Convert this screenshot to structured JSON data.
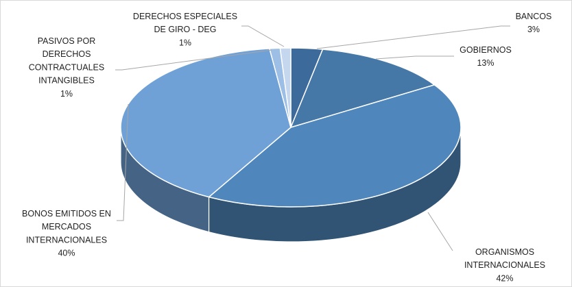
{
  "chart_data": {
    "type": "pie",
    "categories": [
      "BANCOS",
      "GOBIERNOS",
      "ORGANISMOS INTERNACIONALES",
      "BONOS EMITIDOS EN MERCADOS INTERNACIONALES",
      "PASIVOS POR DERECHOS CONTRACTUALES INTANGIBLES",
      "DERECHOS ESPECIALES DE GIRO - DEG"
    ],
    "values": [
      3,
      13,
      42,
      40,
      1,
      1
    ],
    "title": "",
    "value_labels": [
      "3%",
      "13%",
      "42%",
      "40%",
      "1%",
      "1%"
    ],
    "label_lines": [
      [
        "BANCOS",
        "3%"
      ],
      [
        "GOBIERNOS",
        "13%"
      ],
      [
        "ORGANISMOS",
        "INTERNACIONALES",
        "42%"
      ],
      [
        "BONOS EMITIDOS EN",
        "MERCADOS",
        "INTERNACIONALES",
        "40%"
      ],
      [
        "PASIVOS POR",
        "DERECHOS",
        "CONTRACTUALES",
        "INTANGIBLES",
        "1%"
      ],
      [
        "DERECHOS ESPECIALES",
        "DE GIRO - DEG",
        "1%"
      ]
    ],
    "colors": [
      "#3c6a9a",
      "#4577a7",
      "#4f87bd",
      "#6fa1d6",
      "#9dbfe5",
      "#c4d7ef"
    ],
    "style": "3d-pie",
    "legend": "none"
  }
}
